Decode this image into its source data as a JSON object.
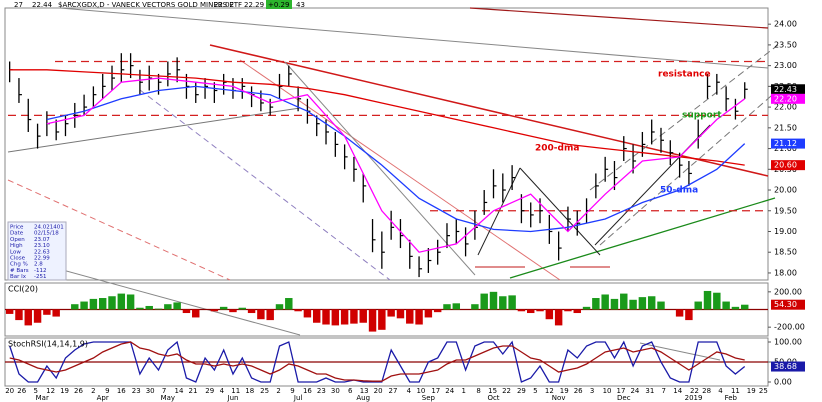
{
  "chart_data": [
    {
      "type": "ohlc",
      "title": "$ARCXGDX,D - VANECK VECTORS GOLD MINERS ETF",
      "header_stats": [
        "27",
        "22.44",
        "22.02",
        "22.29",
        "+0.29",
        "43"
      ],
      "info": [
        [
          "Price",
          "24.021401"
        ],
        [
          "Date",
          "02/15/18"
        ],
        [
          "Open",
          "23.07"
        ],
        [
          "High",
          "23.10"
        ],
        [
          "Low",
          "22.63"
        ],
        [
          "Close",
          "22.99"
        ],
        [
          "Chg %",
          "2.8"
        ],
        [
          "# Bars",
          "-112"
        ],
        [
          "Bar Ix",
          "-251"
        ]
      ],
      "xlim": [
        -0.5,
        81.5
      ],
      "ylim": [
        17.83,
        24.39
      ],
      "yticks": [
        {
          "value": 18,
          "label": "18.00"
        },
        {
          "value": 18.5,
          "label": "18.50"
        },
        {
          "value": 19,
          "label": "19.00"
        },
        {
          "value": 19.5,
          "label": "19.50"
        },
        {
          "value": 20,
          "label": "20.00"
        },
        {
          "value": 20.5,
          "label": "20.50"
        },
        {
          "value": 21,
          "label": "21.00"
        },
        {
          "value": 21.5,
          "label": "21.50"
        },
        {
          "value": 22,
          "label": "22.00"
        },
        {
          "value": 22.5,
          "label": "22.50"
        },
        {
          "value": 23,
          "label": "23.00"
        },
        {
          "value": 23.5,
          "label": "23.50"
        },
        {
          "value": 24,
          "label": "24.00"
        }
      ],
      "bar_color": "#000000",
      "high": [
        23.1,
        22.7,
        22.2,
        21.6,
        21.9,
        21.7,
        21.8,
        22.1,
        22.3,
        22.5,
        22.8,
        23.0,
        23.3,
        23.3,
        22.9,
        23.0,
        22.8,
        23.1,
        23.2,
        22.8,
        22.6,
        22.7,
        22.6,
        22.8,
        22.7,
        22.7,
        22.5,
        22.4,
        22.2,
        22.8,
        23.0,
        22.5,
        22.2,
        21.8,
        21.7,
        21.4,
        21.1,
        20.8,
        20.4,
        19.3,
        19.0,
        19.5,
        19.3,
        18.8,
        18.4,
        18.6,
        18.8,
        19.2,
        19.3,
        19.1,
        19.5,
        20.0,
        20.5,
        20.4,
        20.6,
        19.9,
        19.7,
        19.8,
        19.4,
        19.0,
        19.6,
        19.5,
        19.8,
        20.4,
        20.8,
        20.7,
        21.3,
        21.1,
        21.4,
        21.7,
        21.5,
        21.2,
        20.9,
        20.7,
        21.7,
        22.8,
        22.8,
        22.5,
        22.2,
        22.6
      ],
      "low": [
        22.6,
        22.1,
        21.4,
        21.0,
        21.3,
        21.2,
        21.3,
        21.5,
        21.8,
        22.0,
        22.2,
        22.4,
        22.6,
        22.7,
        22.3,
        22.4,
        22.3,
        22.5,
        22.6,
        22.2,
        22.1,
        22.2,
        22.1,
        22.3,
        22.2,
        22.2,
        22.0,
        21.9,
        21.8,
        22.2,
        22.5,
        21.9,
        21.6,
        21.3,
        21.1,
        20.8,
        20.5,
        20.2,
        19.7,
        18.5,
        18.1,
        18.8,
        18.6,
        18.1,
        17.9,
        18.0,
        18.2,
        18.6,
        18.7,
        18.4,
        18.8,
        19.4,
        19.8,
        19.7,
        20.0,
        19.2,
        19.1,
        19.2,
        18.7,
        18.3,
        19.0,
        18.9,
        19.2,
        19.8,
        20.2,
        20.0,
        20.7,
        20.4,
        20.8,
        21.1,
        20.9,
        20.6,
        20.3,
        20.1,
        21.0,
        22.2,
        22.3,
        21.9,
        21.7,
        22.2
      ],
      "close": [
        22.9,
        22.3,
        21.7,
        21.3,
        21.6,
        21.4,
        21.6,
        21.8,
        22.0,
        22.3,
        22.5,
        22.7,
        22.9,
        23.0,
        22.6,
        22.7,
        22.6,
        22.8,
        22.9,
        22.5,
        22.3,
        22.5,
        22.4,
        22.6,
        22.4,
        22.5,
        22.3,
        22.1,
        22.0,
        22.5,
        22.8,
        22.2,
        21.9,
        21.6,
        21.4,
        21.1,
        20.8,
        20.5,
        20.1,
        18.8,
        18.5,
        19.1,
        18.9,
        18.4,
        18.1,
        18.3,
        18.5,
        18.9,
        19.0,
        18.7,
        19.1,
        19.7,
        20.1,
        20.0,
        20.3,
        19.5,
        19.4,
        19.5,
        19.0,
        18.6,
        19.3,
        19.2,
        19.5,
        20.1,
        20.5,
        20.3,
        21.0,
        20.7,
        21.1,
        21.4,
        21.2,
        20.9,
        20.6,
        20.4,
        21.3,
        22.5,
        22.6,
        22.2,
        21.9,
        22.43
      ],
      "ma_x": [
        0,
        4,
        8,
        12,
        16,
        20,
        24,
        28,
        32,
        36,
        40,
        44,
        48,
        52,
        56,
        60,
        64,
        68,
        72,
        76,
        79
      ],
      "series": [
        {
          "name": "200-dma",
          "color": "#e00000",
          "values": [
            22.9,
            22.9,
            22.85,
            22.8,
            22.75,
            22.7,
            22.6,
            22.55,
            22.45,
            22.3,
            22.1,
            21.9,
            21.7,
            21.5,
            21.3,
            21.1,
            21.0,
            20.9,
            20.8,
            20.7,
            20.6
          ]
        },
        {
          "name": "50-dma",
          "color": "#1e3cff",
          "values": [
            null,
            21.7,
            21.9,
            22.2,
            22.4,
            22.5,
            22.4,
            22.3,
            21.9,
            21.3,
            20.6,
            19.8,
            19.3,
            19.05,
            19.0,
            19.1,
            19.3,
            19.7,
            20.0,
            20.5,
            21.12
          ]
        },
        {
          "color": "#ff00ff",
          "values": [
            null,
            21.6,
            21.8,
            22.6,
            22.7,
            22.6,
            22.5,
            22.1,
            22.3,
            21.3,
            19.5,
            18.5,
            18.7,
            19.5,
            19.9,
            19.0,
            19.9,
            20.7,
            20.8,
            21.7,
            22.2
          ]
        }
      ],
      "levels": [
        23.1,
        21.8,
        19.5
      ],
      "level_color": "#d42020",
      "annotations": [
        {
          "text": "resistance",
          "color": "#e00000"
        },
        {
          "text": "support",
          "color": "#1a9a1a"
        }
      ],
      "tags": [
        {
          "value": 22.43,
          "label": "22.43",
          "color": "#000000"
        },
        {
          "value": 22.2,
          "label": "22.20",
          "color": "#ff00ff"
        },
        {
          "value": 21.12,
          "label": "21.12",
          "color": "#1e3cff"
        },
        {
          "value": 20.6,
          "label": "20.60",
          "color": "#e00000"
        }
      ]
    },
    {
      "type": "histogram",
      "title": "CCI(20)",
      "xlim": [
        -0.5,
        81.5
      ],
      "ylim": [
        -300,
        300
      ],
      "yticks": [
        {
          "value": -200,
          "label": "-200.00"
        },
        {
          "value": 200,
          "label": "200.00"
        }
      ],
      "pos_color": "#1a9a1a",
      "neg_color": "#d00000",
      "zero_color": "#8b0000",
      "values": [
        -50,
        -120,
        -180,
        -150,
        -60,
        -80,
        0,
        60,
        90,
        120,
        130,
        150,
        180,
        170,
        20,
        40,
        10,
        60,
        80,
        -40,
        -90,
        0,
        -20,
        30,
        -30,
        20,
        -40,
        -110,
        -120,
        60,
        130,
        -20,
        -90,
        -150,
        -170,
        -180,
        -170,
        -160,
        -150,
        -250,
        -230,
        -80,
        -100,
        -160,
        -170,
        -90,
        -30,
        60,
        70,
        0,
        60,
        180,
        200,
        150,
        160,
        -20,
        -40,
        -20,
        -110,
        -180,
        -20,
        -40,
        30,
        130,
        170,
        120,
        180,
        110,
        140,
        150,
        90,
        0,
        -80,
        -120,
        90,
        210,
        190,
        90,
        30,
        54.3
      ],
      "tags": [
        {
          "value": 54.3,
          "label": "54.30",
          "color": "#d00000"
        }
      ]
    },
    {
      "type": "line",
      "title": "StochRSI(14,14,1,9)",
      "xlim": [
        -0.5,
        81.5
      ],
      "ylim": [
        -10,
        110
      ],
      "yticks": [
        {
          "value": 0,
          "label": "0.00"
        },
        {
          "value": 50,
          "label": "50.00"
        },
        {
          "value": 100,
          "label": "100.00"
        }
      ],
      "mid_line": 50,
      "mid_color": "#8b0000",
      "series": [
        {
          "color": "#1a1aa8",
          "values": [
            90,
            20,
            0,
            0,
            40,
            10,
            60,
            80,
            95,
            100,
            100,
            100,
            100,
            100,
            20,
            60,
            30,
            80,
            100,
            10,
            0,
            60,
            30,
            80,
            20,
            60,
            10,
            0,
            0,
            90,
            100,
            0,
            0,
            0,
            10,
            0,
            0,
            5,
            0,
            0,
            0,
            80,
            40,
            0,
            0,
            50,
            60,
            100,
            100,
            30,
            90,
            100,
            100,
            70,
            100,
            0,
            10,
            40,
            0,
            0,
            80,
            60,
            90,
            100,
            100,
            60,
            100,
            40,
            90,
            100,
            50,
            10,
            0,
            0,
            100,
            100,
            100,
            40,
            20,
            38.68
          ]
        },
        {
          "color": "#a01010",
          "values": [
            60,
            55,
            45,
            35,
            30,
            25,
            30,
            40,
            50,
            60,
            75,
            85,
            95,
            100,
            85,
            80,
            70,
            65,
            70,
            55,
            45,
            45,
            40,
            45,
            40,
            45,
            40,
            30,
            20,
            30,
            45,
            40,
            30,
            20,
            20,
            10,
            5,
            5,
            3,
            2,
            2,
            15,
            20,
            20,
            20,
            25,
            30,
            45,
            55,
            55,
            65,
            75,
            85,
            90,
            90,
            75,
            60,
            55,
            40,
            25,
            30,
            35,
            45,
            60,
            75,
            80,
            85,
            75,
            80,
            85,
            75,
            60,
            45,
            30,
            45,
            60,
            75,
            70,
            60,
            55
          ]
        }
      ],
      "tags": [
        {
          "value": 38.68,
          "label": "38.68",
          "color": "#1a1aa8"
        }
      ],
      "xticks": [
        {
          "value": 0,
          "label": "20"
        },
        {
          "value": 1.3,
          "label": "26"
        },
        {
          "value": 2.8,
          "label": "5"
        },
        {
          "value": 4.4,
          "label": "12"
        },
        {
          "value": 5.9,
          "label": "19"
        },
        {
          "value": 7.4,
          "label": "26"
        },
        {
          "value": 9,
          "label": "2"
        },
        {
          "value": 10.5,
          "label": "9"
        },
        {
          "value": 12,
          "label": "16"
        },
        {
          "value": 13.6,
          "label": "23"
        },
        {
          "value": 15.1,
          "label": "30"
        },
        {
          "value": 16.6,
          "label": "7"
        },
        {
          "value": 18.2,
          "label": "14"
        },
        {
          "value": 19.7,
          "label": "21"
        },
        {
          "value": 21.5,
          "label": "29"
        },
        {
          "value": 22.8,
          "label": "4"
        },
        {
          "value": 24.3,
          "label": "11"
        },
        {
          "value": 25.8,
          "label": "18"
        },
        {
          "value": 27.4,
          "label": "25"
        },
        {
          "value": 28.9,
          "label": "2"
        },
        {
          "value": 30.4,
          "label": "9"
        },
        {
          "value": 32,
          "label": "16"
        },
        {
          "value": 33.5,
          "label": "23"
        },
        {
          "value": 35,
          "label": "30"
        },
        {
          "value": 36.6,
          "label": "6"
        },
        {
          "value": 38.1,
          "label": "13"
        },
        {
          "value": 39.6,
          "label": "20"
        },
        {
          "value": 41.2,
          "label": "27"
        },
        {
          "value": 42.9,
          "label": "4"
        },
        {
          "value": 44.2,
          "label": "10"
        },
        {
          "value": 45.8,
          "label": "17"
        },
        {
          "value": 47.3,
          "label": "24"
        },
        {
          "value": 48.8,
          "label": "1"
        },
        {
          "value": 50.4,
          "label": "8"
        },
        {
          "value": 51.9,
          "label": "15"
        },
        {
          "value": 53.4,
          "label": "22"
        },
        {
          "value": 55,
          "label": "29"
        },
        {
          "value": 56.5,
          "label": "5"
        },
        {
          "value": 58,
          "label": "12"
        },
        {
          "value": 59.6,
          "label": "19"
        },
        {
          "value": 61.1,
          "label": "26"
        },
        {
          "value": 62.6,
          "label": "3"
        },
        {
          "value": 64.2,
          "label": "10"
        },
        {
          "value": 65.7,
          "label": "17"
        },
        {
          "value": 67.2,
          "label": "24"
        },
        {
          "value": 68.8,
          "label": "31"
        },
        {
          "value": 70.3,
          "label": "7"
        },
        {
          "value": 71.8,
          "label": "14"
        },
        {
          "value": 73.6,
          "label": "22"
        },
        {
          "value": 74.9,
          "label": "28"
        },
        {
          "value": 76.4,
          "label": "4"
        },
        {
          "value": 78,
          "label": "11"
        },
        {
          "value": 79.7,
          "label": "19"
        },
        {
          "value": 81,
          "label": "25"
        }
      ],
      "month_ticks": [
        {
          "value": 3.5,
          "label": "Mar"
        },
        {
          "value": 10,
          "label": "Apr"
        },
        {
          "value": 17,
          "label": "May"
        },
        {
          "value": 24,
          "label": "Jun"
        },
        {
          "value": 31,
          "label": "Jul"
        },
        {
          "value": 38,
          "label": "Aug"
        },
        {
          "value": 45,
          "label": "Sep"
        },
        {
          "value": 52,
          "label": "Oct"
        },
        {
          "value": 59,
          "label": "Nov"
        },
        {
          "value": 66,
          "label": "Dec"
        },
        {
          "value": 73.5,
          "label": "2019"
        },
        {
          "value": 77.5,
          "label": "Feb"
        }
      ]
    }
  ]
}
